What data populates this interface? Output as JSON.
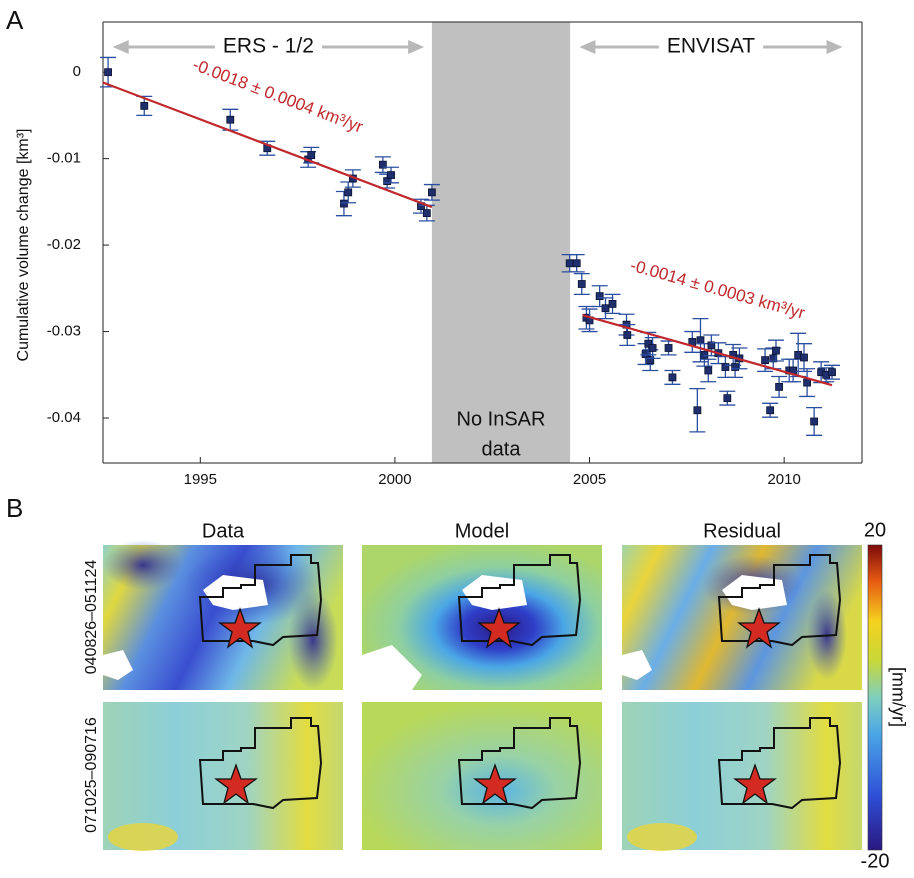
{
  "chart_data": {
    "type": "scatter",
    "panel": "A",
    "y_label": "Cumulative volume change [km³]",
    "xlim": [
      1992.5,
      2012
    ],
    "ylim": [
      -0.0452,
      0.0058
    ],
    "xticks": [
      1995,
      2000,
      2005,
      2010
    ],
    "yticks": [
      0,
      -0.01,
      -0.02,
      -0.03,
      -0.04
    ],
    "shade": {
      "x": [
        2000.95,
        2004.5
      ],
      "label": [
        "No InSAR",
        "data"
      ],
      "color": "#c0c0c0"
    },
    "spans": [
      {
        "label": "ERS - 1/2",
        "x": [
          1992.75,
          2000.75
        ]
      },
      {
        "label": "ENVISAT",
        "x": [
          2004.74,
          2011.5
        ]
      }
    ],
    "series": [
      {
        "color": "#1f2f6e",
        "error_color": "#2b4fa0",
        "x": [
          1992.63,
          1993.56,
          1995.77,
          1996.72,
          1997.77,
          1997.85,
          1998.69,
          1998.8,
          1998.92,
          1999.69,
          1999.8,
          1999.9,
          2000.67,
          2000.82,
          2000.95
        ],
        "values": [
          0.0,
          -0.0039,
          -0.0055,
          -0.0088,
          -0.0101,
          -0.0096,
          -0.0152,
          -0.0139,
          -0.0123,
          -0.0107,
          -0.0126,
          -0.0119,
          -0.0155,
          -0.0163,
          -0.0139
        ],
        "errors": [
          0.0017,
          0.0011,
          0.0012,
          0.0008,
          0.0009,
          0.0009,
          0.0014,
          0.0012,
          0.001,
          0.0009,
          0.0008,
          0.0009,
          0.0008,
          0.0009,
          0.0009
        ]
      },
      {
        "color": "#1f2f6e",
        "error_color": "#2b4fa0",
        "x": [
          2004.49,
          2004.67,
          2004.8,
          2004.92,
          2005.0,
          2005.26,
          2005.41,
          2005.59,
          2005.95,
          2005.97,
          2006.44,
          2006.51,
          2006.56,
          2006.62,
          2007.03,
          2007.13,
          2007.64,
          2007.77,
          2007.85,
          2007.95,
          2008.05,
          2008.13,
          2008.31,
          2008.49,
          2008.54,
          2008.69,
          2008.74,
          2008.85,
          2009.51,
          2009.64,
          2009.72,
          2009.79,
          2009.87,
          2010.13,
          2010.23,
          2010.36,
          2010.51,
          2010.59,
          2010.77,
          2010.95,
          2011.08,
          2011.23
        ],
        "values": [
          -0.0221,
          -0.0221,
          -0.0245,
          -0.0284,
          -0.0287,
          -0.0259,
          -0.0273,
          -0.0268,
          -0.0292,
          -0.0304,
          -0.0326,
          -0.0314,
          -0.0333,
          -0.0319,
          -0.0319,
          -0.0353,
          -0.0312,
          -0.0391,
          -0.031,
          -0.0327,
          -0.0345,
          -0.0316,
          -0.0325,
          -0.0341,
          -0.0377,
          -0.0327,
          -0.0341,
          -0.0331,
          -0.0333,
          -0.0391,
          -0.0331,
          -0.0322,
          -0.0364,
          -0.0345,
          -0.0345,
          -0.0327,
          -0.033,
          -0.0359,
          -0.0404,
          -0.0347,
          -0.035,
          -0.0347
        ],
        "errors": [
          0.001,
          0.001,
          0.0012,
          0.0013,
          0.0013,
          0.0012,
          0.0012,
          0.0011,
          0.0012,
          0.0012,
          0.0012,
          0.0013,
          0.0012,
          0.0012,
          0.0008,
          0.0008,
          0.0012,
          0.0025,
          0.0025,
          0.0013,
          0.0013,
          0.0012,
          0.0012,
          0.0012,
          0.0008,
          0.0012,
          0.0012,
          0.0012,
          0.0013,
          0.0008,
          0.0012,
          0.0012,
          0.0012,
          0.0013,
          0.0013,
          0.0025,
          0.0016,
          0.0016,
          0.0016,
          0.0012,
          0.0008,
          0.0008
        ]
      }
    ],
    "fits": [
      {
        "x": [
          1992.5,
          2000.95
        ],
        "values": [
          -0.0012,
          -0.0156
        ],
        "label": "-0.0018 ± 0.0004 km³/yr",
        "color": "#c0282d"
      },
      {
        "x": [
          2004.82,
          2011.23
        ],
        "values": [
          -0.0281,
          -0.0362
        ],
        "label": "-0.0014 ± 0.0003 km³/yr",
        "color": "#c0282d"
      }
    ]
  },
  "panel_b": {
    "label": "B",
    "columns": [
      "Data",
      "Model",
      "Residual"
    ],
    "rows": [
      "040826–051124",
      "071025–090716"
    ],
    "colorbar": {
      "max": 20,
      "min": -20,
      "label": "[mm/yr]"
    }
  }
}
